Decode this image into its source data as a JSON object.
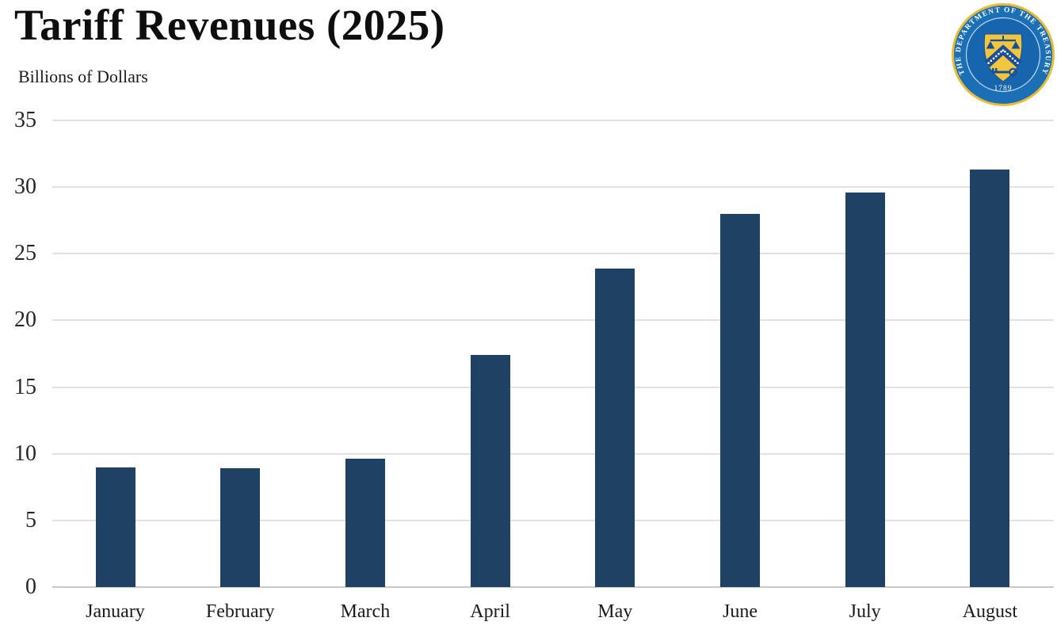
{
  "header": {
    "title": "Tariff Revenues (2025)",
    "subtitle": "Billions of Dollars"
  },
  "seal": {
    "ring_text": "THE DEPARTMENT OF THE TREASURY",
    "year": "1789",
    "colors": {
      "gold_edge": "#e9bc38",
      "ring_blue": "#1b6fb5",
      "center_blue": "#1766ad",
      "separator": "#c3d9ee",
      "shield_gold": "#f0c63f",
      "emblem_navy": "#1a4d94",
      "star_white": "#ffffff"
    }
  },
  "chart_data": {
    "type": "bar",
    "title": "Tariff Revenues (2025)",
    "ylabel": "Billions of Dollars",
    "xlabel": "",
    "categories": [
      "January",
      "February",
      "March",
      "April",
      "May",
      "June",
      "July",
      "August"
    ],
    "values": [
      9.0,
      8.9,
      9.6,
      17.4,
      23.9,
      28.0,
      29.6,
      31.3
    ],
    "ylim": [
      0,
      35
    ],
    "yticks": [
      0,
      5,
      10,
      15,
      20,
      25,
      30,
      35
    ],
    "grid": "horizontal",
    "legend": "none",
    "bar_color": "#1e4164",
    "gridline_color": "#e2e2e2",
    "axis_line_color": "#c9c9c9"
  }
}
